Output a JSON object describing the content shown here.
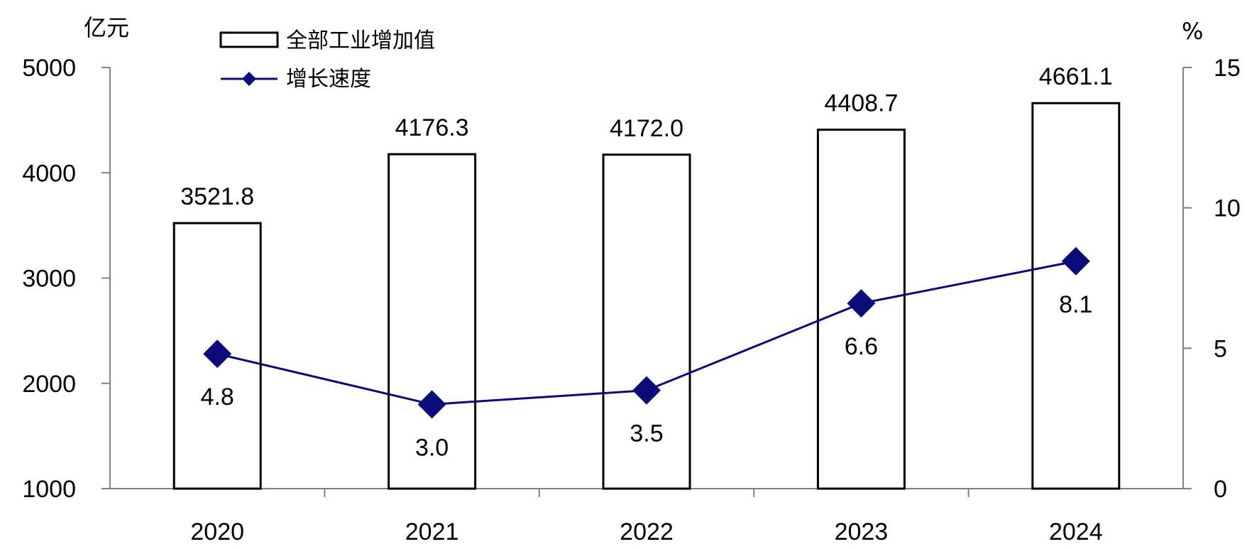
{
  "chart_data": {
    "type": "bar",
    "categories": [
      "2020",
      "2021",
      "2022",
      "2023",
      "2024"
    ],
    "series": [
      {
        "name": "全部工业增加值",
        "type": "bar",
        "axis": "left",
        "values": [
          3521.8,
          4176.3,
          4172.0,
          4408.7,
          4661.1
        ],
        "labels": [
          "3521.8",
          "4176.3",
          "4172.0",
          "4408.7",
          "4661.1"
        ]
      },
      {
        "name": "增长速度",
        "type": "line",
        "axis": "right",
        "values": [
          4.8,
          3.0,
          3.5,
          6.6,
          8.1
        ],
        "labels": [
          "4.8",
          "3.0",
          "3.5",
          "6.6",
          "8.1"
        ],
        "color": "#0b0b7a",
        "marker": "diamond"
      }
    ],
    "y_left": {
      "unit": "亿元",
      "ylim": [
        1000,
        5000
      ],
      "ticks": [
        1000,
        2000,
        3000,
        4000,
        5000
      ],
      "tick_labels": [
        "1000",
        "2000",
        "3000",
        "4000",
        "5000"
      ]
    },
    "y_right": {
      "unit": "%",
      "ylim": [
        0,
        15
      ],
      "ticks": [
        0,
        5,
        10,
        15
      ],
      "tick_labels": [
        "0",
        "5",
        "10",
        "15"
      ]
    },
    "grid": false,
    "legend_position": "top-left"
  }
}
